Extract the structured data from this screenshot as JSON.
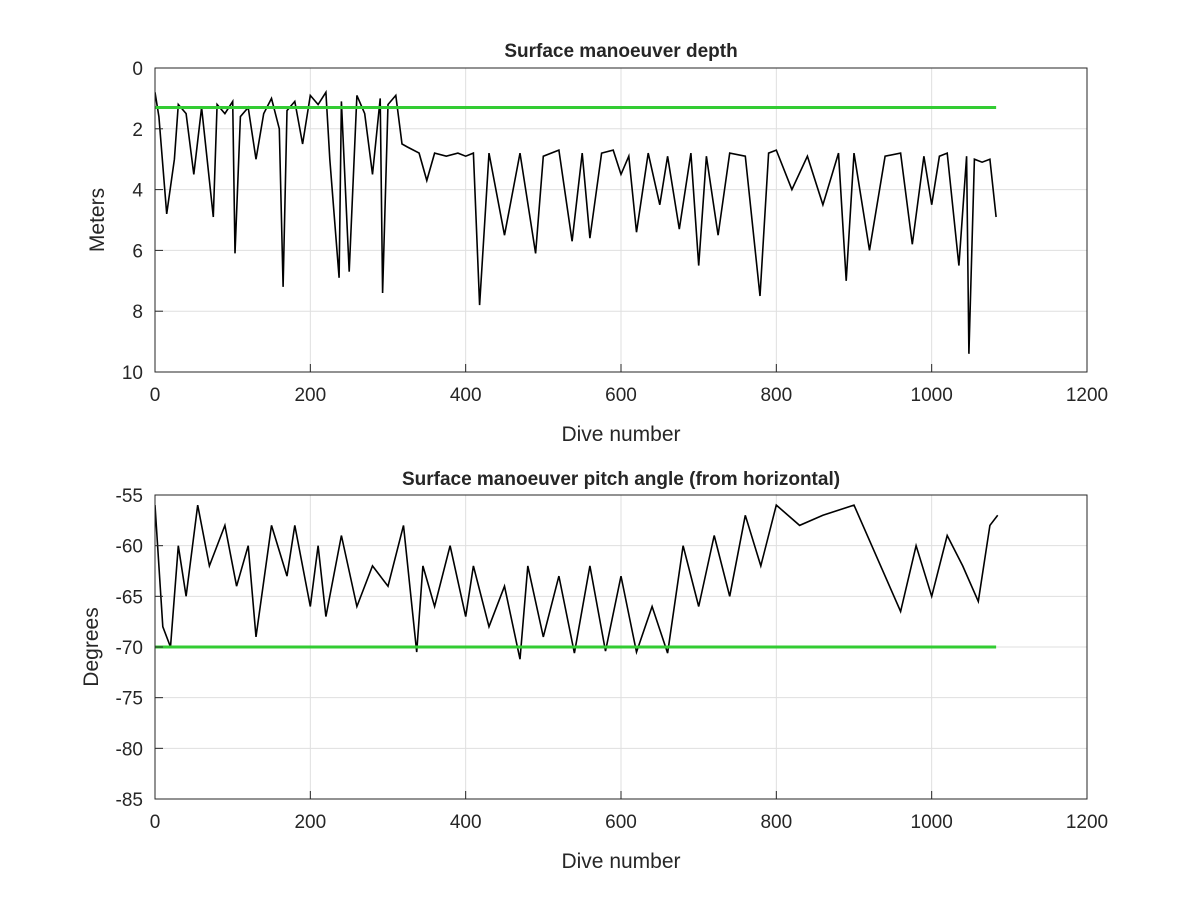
{
  "chart_data": [
    {
      "type": "line",
      "title": "Surface manoeuver depth",
      "xlabel": "Dive number",
      "ylabel": "Meters",
      "xlim": [
        0,
        1200
      ],
      "ylim": [
        0,
        10
      ],
      "y_reversed": true,
      "grid": true,
      "xticks": [
        "0",
        "200",
        "400",
        "600",
        "800",
        "1000",
        "1200"
      ],
      "yticks": [
        "0",
        "2",
        "4",
        "6",
        "8",
        "10"
      ],
      "colors": {
        "data": "#000000",
        "threshold": "#33cc33"
      },
      "threshold": {
        "value": 1.3,
        "x": [
          0,
          1083
        ]
      },
      "series": [
        {
          "x": [
            0,
            5,
            15,
            25,
            30,
            40,
            50,
            60,
            75,
            80,
            90,
            100,
            103,
            110,
            120,
            130,
            140,
            150,
            160,
            165,
            170,
            180,
            190,
            200,
            210,
            220,
            225,
            237,
            240,
            250,
            260,
            270,
            280,
            290,
            293,
            300,
            310,
            318,
            325,
            340,
            350,
            360,
            375,
            390,
            400,
            410,
            418,
            430,
            450,
            470,
            490,
            500,
            520,
            537,
            550,
            560,
            575,
            590,
            600,
            610,
            620,
            635,
            650,
            660,
            675,
            690,
            700,
            710,
            725,
            740,
            760,
            779,
            790,
            800,
            820,
            840,
            860,
            880,
            890,
            900,
            920,
            940,
            960,
            975,
            990,
            1000,
            1010,
            1020,
            1035,
            1045,
            1048,
            1055,
            1065,
            1075,
            1083
          ],
          "y": [
            0.8,
            1.6,
            4.8,
            3.0,
            1.2,
            1.5,
            3.5,
            1.3,
            4.9,
            1.2,
            1.5,
            1.1,
            6.1,
            1.6,
            1.3,
            3.0,
            1.5,
            1.0,
            2.0,
            7.2,
            1.4,
            1.1,
            2.5,
            0.9,
            1.2,
            0.8,
            3.0,
            6.9,
            1.1,
            6.7,
            0.9,
            1.5,
            3.5,
            1.0,
            7.4,
            1.2,
            0.9,
            2.5,
            2.6,
            2.8,
            3.7,
            2.8,
            2.9,
            2.8,
            2.9,
            2.8,
            7.8,
            2.8,
            5.5,
            2.8,
            6.1,
            2.9,
            2.7,
            5.7,
            2.8,
            5.6,
            2.8,
            2.7,
            3.5,
            2.9,
            5.4,
            2.8,
            4.5,
            2.9,
            5.3,
            2.8,
            6.5,
            2.9,
            5.5,
            2.8,
            2.9,
            7.5,
            2.8,
            2.7,
            4.0,
            2.9,
            4.5,
            2.8,
            7.0,
            2.8,
            6.0,
            2.9,
            2.8,
            5.8,
            2.9,
            4.5,
            2.9,
            2.8,
            6.5,
            2.9,
            9.4,
            3.0,
            3.1,
            3.0,
            4.9
          ]
        }
      ]
    },
    {
      "type": "line",
      "title": "Surface manoeuver pitch angle (from horizontal)",
      "xlabel": "Dive number",
      "ylabel": "Degrees",
      "xlim": [
        0,
        1200
      ],
      "ylim": [
        -85,
        -55
      ],
      "grid": true,
      "xticks": [
        "0",
        "200",
        "400",
        "600",
        "800",
        "1000",
        "1200"
      ],
      "yticks": [
        "-55",
        "-60",
        "-65",
        "-70",
        "-75",
        "-80",
        "-85"
      ],
      "colors": {
        "data": "#000000",
        "threshold": "#33cc33"
      },
      "threshold": {
        "value": -70,
        "x": [
          0,
          1083
        ]
      },
      "series": [
        {
          "x": [
            0,
            10,
            20,
            30,
            40,
            55,
            70,
            90,
            105,
            120,
            130,
            150,
            170,
            180,
            200,
            210,
            220,
            240,
            260,
            280,
            300,
            320,
            337,
            345,
            360,
            380,
            400,
            410,
            430,
            450,
            470,
            480,
            500,
            520,
            540,
            560,
            580,
            600,
            620,
            640,
            660,
            680,
            700,
            720,
            740,
            760,
            780,
            800,
            830,
            860,
            900,
            960,
            980,
            1000,
            1020,
            1040,
            1060,
            1075,
            1085
          ],
          "y": [
            -56,
            -68,
            -70,
            -60,
            -65,
            -56,
            -62,
            -58,
            -64,
            -60,
            -69,
            -58,
            -63,
            -58,
            -66,
            -60,
            -67,
            -59,
            -66,
            -62,
            -64,
            -58,
            -70.5,
            -62,
            -66,
            -60,
            -67,
            -62,
            -68,
            -64,
            -71.2,
            -62,
            -69,
            -63,
            -70.6,
            -62,
            -70.4,
            -63,
            -70.5,
            -66,
            -70.6,
            -60,
            -66,
            -59,
            -65,
            -57,
            -62,
            -56,
            -58,
            -57,
            -56,
            -66.5,
            -60,
            -65,
            -59,
            -62,
            -65.5,
            -58,
            -57
          ]
        }
      ]
    }
  ]
}
